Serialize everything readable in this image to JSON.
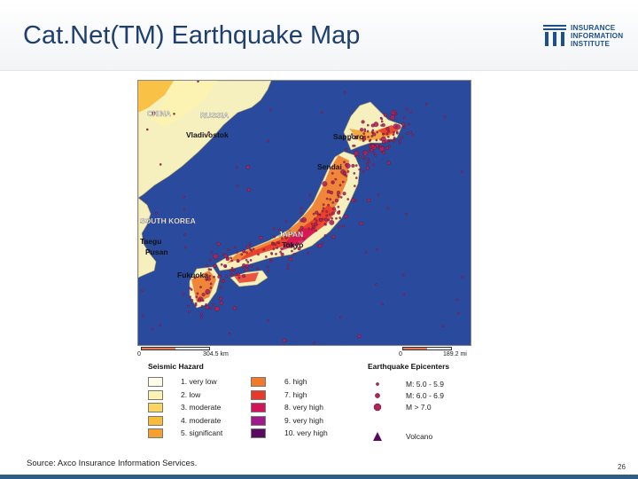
{
  "header": {
    "title": "Cat.Net(TM) Earthquake Map"
  },
  "logo": {
    "line1": "INSURANCE",
    "line2": "INFORMATION",
    "line3": "INSTITUTE",
    "color": "#1f4f8e"
  },
  "map": {
    "labels": {
      "china": "CHINA",
      "russia": "RUSSIA",
      "vladivostok": "Vladivostok",
      "sapporo": "Sapporo",
      "sendai": "Sendai",
      "south_korea": "SOUTH KOREA",
      "taegu": "Taegu",
      "pusan": "Pusan",
      "japan": "JAPAN",
      "tokyo": "Tokyo",
      "fukuoka": "Fukuoka"
    },
    "colors": {
      "sea": "#2a4a9e",
      "land": "#f6f0bf",
      "epicenter": "#b0245a"
    }
  },
  "scales": {
    "km": {
      "zero": "0",
      "value": "304.5 km"
    },
    "mi": {
      "zero": "0",
      "value": "189.2 mi"
    }
  },
  "legend": {
    "seismic_title": "Seismic Hazard",
    "hazard": [
      {
        "label": "1. very low",
        "color": "#fffde8"
      },
      {
        "label": "2. low",
        "color": "#fdf3b0"
      },
      {
        "label": "3. moderate",
        "color": "#fbd560"
      },
      {
        "label": "4. moderate",
        "color": "#f9bc3a"
      },
      {
        "label": "5. significant",
        "color": "#f5a030"
      },
      {
        "label": "6. high",
        "color": "#f07a2a"
      },
      {
        "label": "7. high",
        "color": "#e83a2a"
      },
      {
        "label": "8. very high",
        "color": "#d4145a"
      },
      {
        "label": "9. very high",
        "color": "#a01a8a"
      },
      {
        "label": "10. very high",
        "color": "#5a0a5e"
      }
    ],
    "epicenter_title": "Earthquake Epicenters",
    "epicenters": [
      {
        "label": "M: 5.0 - 5.9",
        "icon": "small-dot-icon"
      },
      {
        "label": "M: 6.0 - 6.9",
        "icon": "medium-dot-icon"
      },
      {
        "label": "M > 7.0",
        "icon": "large-dot-icon"
      },
      {
        "label": "Volcano",
        "icon": "volcano-triangle-icon"
      }
    ]
  },
  "footer": {
    "source": "Source: Axco Insurance Information Services.",
    "page": "26"
  }
}
